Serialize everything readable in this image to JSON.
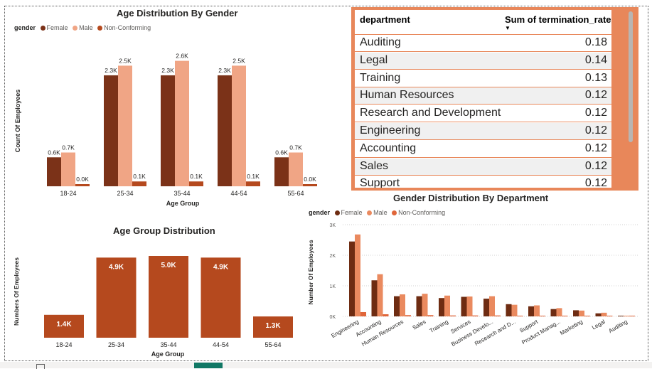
{
  "colors": {
    "female": "#7b3218",
    "male": "#f0a585",
    "non_conforming": "#b5491e",
    "bar": "#b5491e",
    "dept_female": "#6e2c12",
    "dept_male": "#ea8a5f",
    "dept_non": "#e0663a",
    "table_border": "#e8875a"
  },
  "age_gender": {
    "title": "Age Distribution By Gender",
    "legend_title": "gender",
    "legend": [
      "Female",
      "Male",
      "Non-Conforming"
    ],
    "xlabel": "Age Group",
    "ylabel": "Count Of Employees"
  },
  "age_group": {
    "title": "Age Group Distribution",
    "xlabel": "Age Group",
    "ylabel": "Numbers Of Employees"
  },
  "dept_gender": {
    "title": "Gender Distribution By Department",
    "legend_title": "gender",
    "legend": [
      "Female",
      "Male",
      "Non-Conforming"
    ],
    "ylabel": "Number Of Employees",
    "yticks": [
      "0K",
      "1K",
      "2K",
      "3K"
    ]
  },
  "table": {
    "col1": "department",
    "col2": "Sum of termination_rate",
    "rows": [
      {
        "dept": "Auditing",
        "val": "0.18"
      },
      {
        "dept": "Legal",
        "val": "0.14"
      },
      {
        "dept": "Training",
        "val": "0.13"
      },
      {
        "dept": "Human Resources",
        "val": "0.12"
      },
      {
        "dept": "Research and Development",
        "val": "0.12"
      },
      {
        "dept": "Engineering",
        "val": "0.12"
      },
      {
        "dept": "Accounting",
        "val": "0.12"
      },
      {
        "dept": "Sales",
        "val": "0.12"
      },
      {
        "dept": "Support",
        "val": "0.12"
      }
    ]
  },
  "chart_data": [
    {
      "type": "bar",
      "title": "Age Distribution By Gender",
      "xlabel": "Age Group",
      "ylabel": "Count Of Employees",
      "categories": [
        "18-24",
        "25-34",
        "35-44",
        "44-54",
        "55-64"
      ],
      "series": [
        {
          "name": "Female",
          "values": [
            0.6,
            2.3,
            2.3,
            2.3,
            0.6
          ],
          "labels": [
            "0.6K",
            "2.3K",
            "2.3K",
            "2.3K",
            "0.6K"
          ]
        },
        {
          "name": "Male",
          "values": [
            0.7,
            2.5,
            2.6,
            2.5,
            0.7
          ],
          "labels": [
            "0.7K",
            "2.5K",
            "2.6K",
            "2.5K",
            "0.7K"
          ]
        },
        {
          "name": "Non-Conforming",
          "values": [
            0.02,
            0.1,
            0.1,
            0.1,
            0.02
          ],
          "labels": [
            "0.0K",
            "0.1K",
            "0.1K",
            "0.1K",
            "0.0K"
          ]
        }
      ],
      "ylim": [
        0,
        2.8
      ],
      "legend_position": "top-left"
    },
    {
      "type": "bar",
      "title": "Age Group Distribution",
      "xlabel": "Age Group",
      "ylabel": "Numbers Of Employees",
      "categories": [
        "18-24",
        "25-34",
        "35-44",
        "44-54",
        "55-64"
      ],
      "values": [
        1.4,
        4.9,
        5.0,
        4.9,
        1.3
      ],
      "labels": [
        "1.4K",
        "4.9K",
        "5.0K",
        "4.9K",
        "1.3K"
      ],
      "ylim": [
        0,
        5.0
      ]
    },
    {
      "type": "bar",
      "title": "Gender Distribution By Department",
      "ylabel": "Number Of Employees",
      "categories": [
        "Engineering",
        "Accounting",
        "Human Resources",
        "Sales",
        "Training",
        "Services",
        "Business Develo...",
        "Research and D...",
        "Support",
        "Product Manag...",
        "Marketing",
        "Legal",
        "Auditing"
      ],
      "series": [
        {
          "name": "Female",
          "values": [
            2.45,
            1.18,
            0.66,
            0.66,
            0.6,
            0.64,
            0.58,
            0.4,
            0.33,
            0.24,
            0.2,
            0.1,
            0.02
          ]
        },
        {
          "name": "Male",
          "values": [
            2.68,
            1.38,
            0.72,
            0.74,
            0.68,
            0.65,
            0.66,
            0.38,
            0.36,
            0.27,
            0.19,
            0.12,
            0.02
          ]
        },
        {
          "name": "Non-Conforming",
          "values": [
            0.14,
            0.07,
            0.04,
            0.04,
            0.03,
            0.03,
            0.03,
            0.02,
            0.02,
            0.01,
            0.01,
            0.01,
            0.0
          ]
        }
      ],
      "yticks": [
        0,
        1,
        2,
        3
      ],
      "ylim": [
        0,
        3
      ],
      "legend_position": "top-left"
    }
  ]
}
